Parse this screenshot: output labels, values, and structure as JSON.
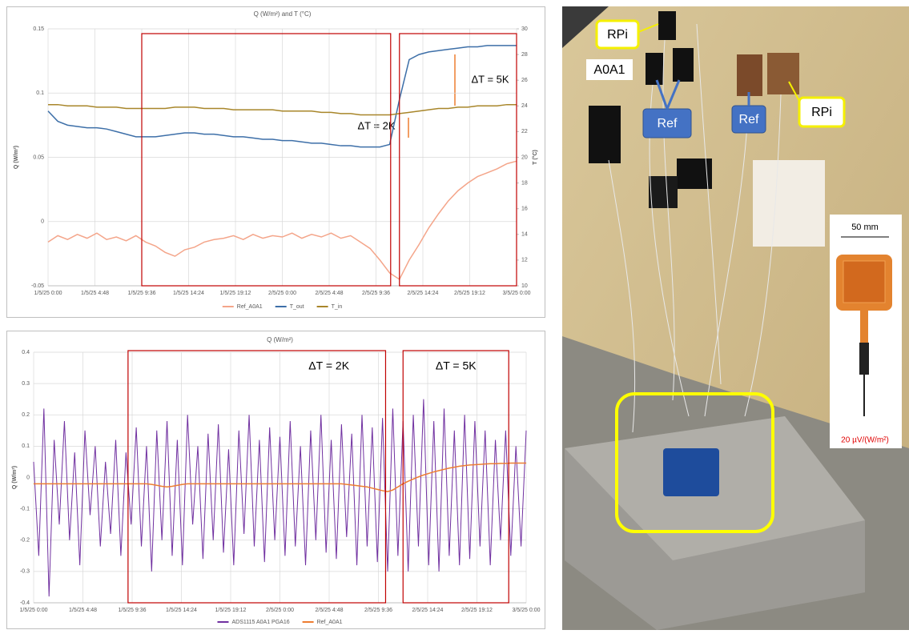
{
  "chart_data": [
    {
      "type": "line",
      "title": "Q (W/m²) and T (°C)",
      "y_label": "Q (W/m²)",
      "y2_label": "T (°C)",
      "x": [
        0,
        1,
        2,
        3,
        4,
        5,
        6,
        7,
        8,
        9,
        10,
        11,
        12,
        13,
        14,
        15,
        16,
        17,
        18,
        19,
        20,
        21,
        22,
        23,
        24,
        25,
        26,
        27,
        28,
        29,
        30,
        31,
        32,
        33,
        34,
        35,
        36,
        37,
        38,
        39,
        40,
        41,
        42,
        43,
        44,
        45,
        46,
        47,
        48
      ],
      "xlim": [
        0,
        48
      ],
      "xticks": [
        {
          "value": 0,
          "label": "1/5/25 0:00"
        },
        {
          "value": 4.8,
          "label": "1/5/25 4:48"
        },
        {
          "value": 9.6,
          "label": "1/5/25 9:36"
        },
        {
          "value": 14.4,
          "label": "1/5/25 14:24"
        },
        {
          "value": 19.2,
          "label": "1/5/25 19:12"
        },
        {
          "value": 24,
          "label": "2/5/25 0:00"
        },
        {
          "value": 28.8,
          "label": "2/5/25 4:48"
        },
        {
          "value": 33.6,
          "label": "2/5/25 9:36"
        },
        {
          "value": 38.4,
          "label": "2/5/25 14:24"
        },
        {
          "value": 43.2,
          "label": "2/5/25 19:12"
        },
        {
          "value": 48,
          "label": "3/5/25 0:00"
        }
      ],
      "ylim": [
        -0.05,
        0.15
      ],
      "yticks": [
        -0.05,
        0,
        0.05,
        0.1,
        0.15
      ],
      "y2lim": [
        10,
        30
      ],
      "y2ticks": [
        10,
        12,
        14,
        16,
        18,
        20,
        22,
        24,
        26,
        28,
        30
      ],
      "grid": true,
      "legend": "bottom",
      "series": [
        {
          "name": "Ref_A0A1",
          "color": "#f4a58a",
          "values": [
            -0.016,
            -0.011,
            -0.014,
            -0.01,
            -0.013,
            -0.009,
            -0.014,
            -0.012,
            -0.015,
            -0.011,
            -0.016,
            -0.019,
            -0.024,
            -0.027,
            -0.022,
            -0.02,
            -0.016,
            -0.014,
            -0.013,
            -0.011,
            -0.014,
            -0.01,
            -0.013,
            -0.011,
            -0.012,
            -0.009,
            -0.013,
            -0.01,
            -0.012,
            -0.009,
            -0.013,
            -0.011,
            -0.016,
            -0.021,
            -0.03,
            -0.04,
            -0.045,
            -0.03,
            -0.018,
            -0.005,
            0.006,
            0.016,
            0.024,
            0.03,
            0.035,
            0.038,
            0.041,
            0.045,
            0.047
          ]
        },
        {
          "name": "T_out",
          "color": "#3d6fa8",
          "axis": "y2",
          "values": [
            23.6,
            22.8,
            22.5,
            22.4,
            22.3,
            22.3,
            22.2,
            22.0,
            21.8,
            21.6,
            21.6,
            21.6,
            21.7,
            21.8,
            21.9,
            21.9,
            21.8,
            21.8,
            21.7,
            21.6,
            21.6,
            21.5,
            21.4,
            21.4,
            21.3,
            21.3,
            21.2,
            21.1,
            21.1,
            21.0,
            20.9,
            20.9,
            20.8,
            20.8,
            20.8,
            21.0,
            24.5,
            27.6,
            28.0,
            28.2,
            28.3,
            28.4,
            28.5,
            28.6,
            28.6,
            28.7,
            28.7,
            28.7,
            28.7
          ]
        },
        {
          "name": "T_in",
          "color": "#a8862a",
          "axis": "y2",
          "values": [
            24.1,
            24.1,
            24.0,
            24.0,
            24.0,
            23.9,
            23.9,
            23.9,
            23.8,
            23.8,
            23.8,
            23.8,
            23.8,
            23.9,
            23.9,
            23.9,
            23.8,
            23.8,
            23.8,
            23.7,
            23.7,
            23.7,
            23.7,
            23.7,
            23.6,
            23.6,
            23.6,
            23.6,
            23.5,
            23.5,
            23.4,
            23.4,
            23.3,
            23.3,
            23.3,
            23.3,
            23.4,
            23.5,
            23.6,
            23.7,
            23.8,
            23.8,
            23.9,
            23.9,
            24.0,
            24.0,
            24.0,
            24.1,
            24.1
          ]
        }
      ],
      "regions": [
        {
          "span": [
            9.6,
            35.1
          ]
        },
        {
          "span": [
            36,
            48
          ]
        }
      ],
      "annotations": [
        {
          "text": "ΔT = 2K"
        },
        {
          "text": "ΔT = 5K"
        }
      ]
    },
    {
      "type": "line",
      "title": "Q (W/m²)",
      "y_label": "Q (W/m²)",
      "x": [
        0,
        0.5,
        1,
        1.5,
        2,
        2.5,
        3,
        3.5,
        4,
        4.5,
        5,
        5.5,
        6,
        6.5,
        7,
        7.5,
        8,
        8.5,
        9,
        9.5,
        10,
        10.5,
        11,
        11.5,
        12,
        12.5,
        13,
        13.5,
        14,
        14.5,
        15,
        15.5,
        16,
        16.5,
        17,
        17.5,
        18,
        18.5,
        19,
        19.5,
        20,
        20.5,
        21,
        21.5,
        22,
        22.5,
        23,
        23.5,
        24,
        24.5,
        25,
        25.5,
        26,
        26.5,
        27,
        27.5,
        28,
        28.5,
        29,
        29.5,
        30,
        30.5,
        31,
        31.5,
        32,
        32.5,
        33,
        33.5,
        34,
        34.5,
        35,
        35.5,
        36,
        36.5,
        37,
        37.5,
        38,
        38.5,
        39,
        39.5,
        40,
        40.5,
        41,
        41.5,
        42,
        42.5,
        43,
        43.5,
        44,
        44.5,
        45,
        45.5,
        46,
        46.5,
        47,
        47.5,
        48
      ],
      "xlim": [
        0,
        48
      ],
      "xticks": [
        {
          "value": 0,
          "label": "1/5/25 0:00"
        },
        {
          "value": 4.8,
          "label": "1/5/25 4:48"
        },
        {
          "value": 9.6,
          "label": "1/5/25 9:36"
        },
        {
          "value": 14.4,
          "label": "1/5/25 14:24"
        },
        {
          "value": 19.2,
          "label": "1/5/25 19:12"
        },
        {
          "value": 24,
          "label": "2/5/25 0:00"
        },
        {
          "value": 28.8,
          "label": "2/5/25 4:48"
        },
        {
          "value": 33.6,
          "label": "2/5/25 9:36"
        },
        {
          "value": 38.4,
          "label": "2/5/25 14:24"
        },
        {
          "value": 43.2,
          "label": "2/5/25 19:12"
        },
        {
          "value": 48,
          "label": "3/5/25 0:00"
        }
      ],
      "ylim": [
        -0.4,
        0.4
      ],
      "yticks": [
        -0.4,
        -0.3,
        -0.2,
        -0.1,
        0,
        0.1,
        0.2,
        0.3,
        0.4
      ],
      "grid": true,
      "legend": "bottom",
      "series": [
        {
          "name": "ADS1115 A0A1 PGA16",
          "color": "#7030a0",
          "values": [
            0.05,
            -0.25,
            0.22,
            -0.38,
            0.12,
            -0.15,
            0.18,
            -0.2,
            0.08,
            -0.28,
            0.15,
            -0.12,
            0.1,
            -0.22,
            0.05,
            -0.18,
            0.12,
            -0.25,
            0.08,
            -0.15,
            0.16,
            -0.22,
            0.1,
            -0.3,
            0.15,
            -0.2,
            0.18,
            -0.25,
            0.12,
            -0.28,
            0.2,
            -0.15,
            0.1,
            -0.26,
            0.14,
            -0.2,
            0.17,
            -0.24,
            0.09,
            -0.28,
            0.15,
            -0.18,
            0.2,
            -0.22,
            0.12,
            -0.27,
            0.16,
            -0.2,
            0.13,
            -0.25,
            0.18,
            -0.22,
            0.1,
            -0.28,
            0.15,
            -0.2,
            0.2,
            -0.24,
            0.12,
            -0.26,
            0.17,
            -0.19,
            0.14,
            -0.28,
            0.2,
            -0.22,
            0.16,
            -0.27,
            0.19,
            -0.3,
            0.22,
            -0.25,
            0.18,
            -0.3,
            0.2,
            -0.22,
            0.25,
            -0.28,
            0.18,
            -0.3,
            0.22,
            -0.25,
            0.15,
            -0.28,
            0.2,
            -0.26,
            0.18,
            -0.22,
            0.15,
            -0.28,
            0.12,
            -0.2,
            0.15,
            -0.25,
            0.1,
            -0.22,
            0.15
          ]
        },
        {
          "name": "Ref_A0A1",
          "color": "#ed7d31",
          "values": [
            -0.02,
            -0.02,
            -0.02,
            -0.02,
            -0.02,
            -0.02,
            -0.02,
            -0.02,
            -0.02,
            -0.02,
            -0.02,
            -0.02,
            -0.02,
            -0.02,
            -0.02,
            -0.02,
            -0.02,
            -0.02,
            -0.02,
            -0.02,
            -0.02,
            -0.02,
            -0.02,
            -0.022,
            -0.025,
            -0.028,
            -0.03,
            -0.028,
            -0.025,
            -0.022,
            -0.02,
            -0.02,
            -0.02,
            -0.02,
            -0.02,
            -0.02,
            -0.02,
            -0.02,
            -0.02,
            -0.02,
            -0.02,
            -0.02,
            -0.02,
            -0.02,
            -0.02,
            -0.02,
            -0.02,
            -0.02,
            -0.02,
            -0.02,
            -0.02,
            -0.02,
            -0.02,
            -0.02,
            -0.02,
            -0.02,
            -0.02,
            -0.02,
            -0.02,
            -0.02,
            -0.02,
            -0.022,
            -0.024,
            -0.026,
            -0.028,
            -0.03,
            -0.034,
            -0.038,
            -0.042,
            -0.045,
            -0.04,
            -0.03,
            -0.02,
            -0.012,
            -0.005,
            0.002,
            0.008,
            0.013,
            0.018,
            0.022,
            0.026,
            0.03,
            0.033,
            0.036,
            0.038,
            0.04,
            0.041,
            0.042,
            0.043,
            0.044,
            0.044,
            0.045,
            0.045,
            0.046,
            0.046,
            0.046,
            0.046
          ]
        }
      ],
      "regions": [
        {
          "span": [
            9.2,
            34.3
          ],
          "label": "ΔT = 2K"
        },
        {
          "span": [
            36,
            46.3
          ],
          "label": "ΔT = 5K"
        }
      ]
    }
  ],
  "photo": {
    "labels": [
      "RPi",
      "A0A1",
      "Ref",
      "Ref",
      "RPi"
    ],
    "inset": {
      "scale": "50 mm",
      "sensitivity": "20 µV/(W/m²)"
    }
  }
}
